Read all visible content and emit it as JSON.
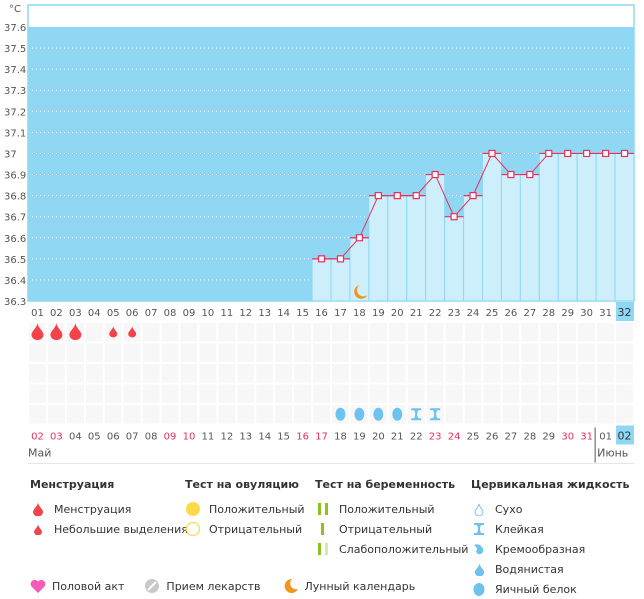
{
  "chart_data": {
    "type": "bar",
    "unit_label": "°C",
    "y_ticks": [
      "37.6",
      "37.5",
      "37.4",
      "37.3",
      "37.2",
      "37.1",
      "37",
      "36.9",
      "36.8",
      "36.7",
      "36.6",
      "36.5",
      "36.4",
      "36.3"
    ],
    "ylim": [
      36.3,
      37.6
    ],
    "cycle_days": [
      "01",
      "02",
      "03",
      "04",
      "05",
      "06",
      "07",
      "08",
      "09",
      "10",
      "11",
      "12",
      "13",
      "14",
      "15",
      "16",
      "17",
      "18",
      "19",
      "20",
      "21",
      "22",
      "23",
      "24",
      "25",
      "26",
      "27",
      "28",
      "29",
      "30",
      "31",
      "32"
    ],
    "temperatures": [
      null,
      null,
      null,
      null,
      null,
      null,
      null,
      null,
      null,
      null,
      null,
      null,
      null,
      null,
      null,
      36.5,
      36.5,
      36.6,
      36.8,
      36.8,
      36.8,
      36.9,
      36.7,
      36.8,
      37.0,
      36.9,
      36.9,
      37.0,
      37.0,
      37.0,
      37.0,
      37.0
    ],
    "current_day_index": 31,
    "moon_day_index": 17,
    "calendar_dates": [
      "02",
      "03",
      "04",
      "05",
      "06",
      "07",
      "08",
      "09",
      "10",
      "11",
      "12",
      "13",
      "14",
      "15",
      "16",
      "17",
      "18",
      "19",
      "20",
      "21",
      "22",
      "23",
      "24",
      "25",
      "26",
      "27",
      "28",
      "29",
      "30",
      "31",
      "01",
      "02"
    ],
    "weekend_flags": [
      true,
      true,
      false,
      false,
      false,
      false,
      false,
      true,
      true,
      false,
      false,
      false,
      false,
      false,
      true,
      true,
      false,
      false,
      false,
      false,
      false,
      true,
      true,
      false,
      false,
      false,
      false,
      false,
      true,
      true,
      false,
      false
    ],
    "month_start_label": "Май",
    "month_change_label": "Июнь",
    "menstruation_marks": [
      "full",
      "full",
      "full",
      null,
      "light",
      "light",
      null,
      null,
      null,
      null,
      null,
      null,
      null,
      null,
      null,
      null,
      null,
      null,
      null,
      null,
      null,
      null,
      null,
      null,
      null,
      null,
      null,
      null,
      null,
      null,
      null,
      null
    ],
    "cervical_marks": [
      null,
      null,
      null,
      null,
      null,
      null,
      null,
      null,
      null,
      null,
      null,
      null,
      null,
      null,
      null,
      null,
      "egg",
      "egg",
      "egg",
      "egg",
      "sticky",
      "sticky",
      null,
      null,
      null,
      null,
      null,
      null,
      null,
      null,
      null,
      null
    ]
  },
  "colors": {
    "plot_bg": "#8fd7f2",
    "bar_fill": "#cdeefb",
    "line": "#e8305c",
    "menstruation": "#f2434b",
    "cervical": "#6ec2ef",
    "ovulation_positive": "#fcd94a",
    "pregnancy": "#8fc220",
    "pregnancy_light": "#d4e8b0",
    "heart": "#f25cb8",
    "pill": "#c8c8c8",
    "moon": "#f0961e"
  },
  "legend": {
    "menstruation": {
      "title": "Менструация",
      "items": [
        "Менструация",
        "Небольшие выделения"
      ]
    },
    "ovulation": {
      "title": "Тест на овуляцию",
      "items": [
        "Положительный",
        "Отрицательный"
      ]
    },
    "pregnancy": {
      "title": "Тест на беременность",
      "items": [
        "Положительный",
        "Отрицательный",
        "Слабоположительный"
      ]
    },
    "cervical": {
      "title": "Цервикальная жидкость",
      "items": [
        "Сухо",
        "Клейкая",
        "Кремообразная",
        "Водянистая",
        "Яичный белок"
      ]
    },
    "other": [
      "Половой акт",
      "Прием лекарств",
      "Лунный календарь"
    ]
  }
}
